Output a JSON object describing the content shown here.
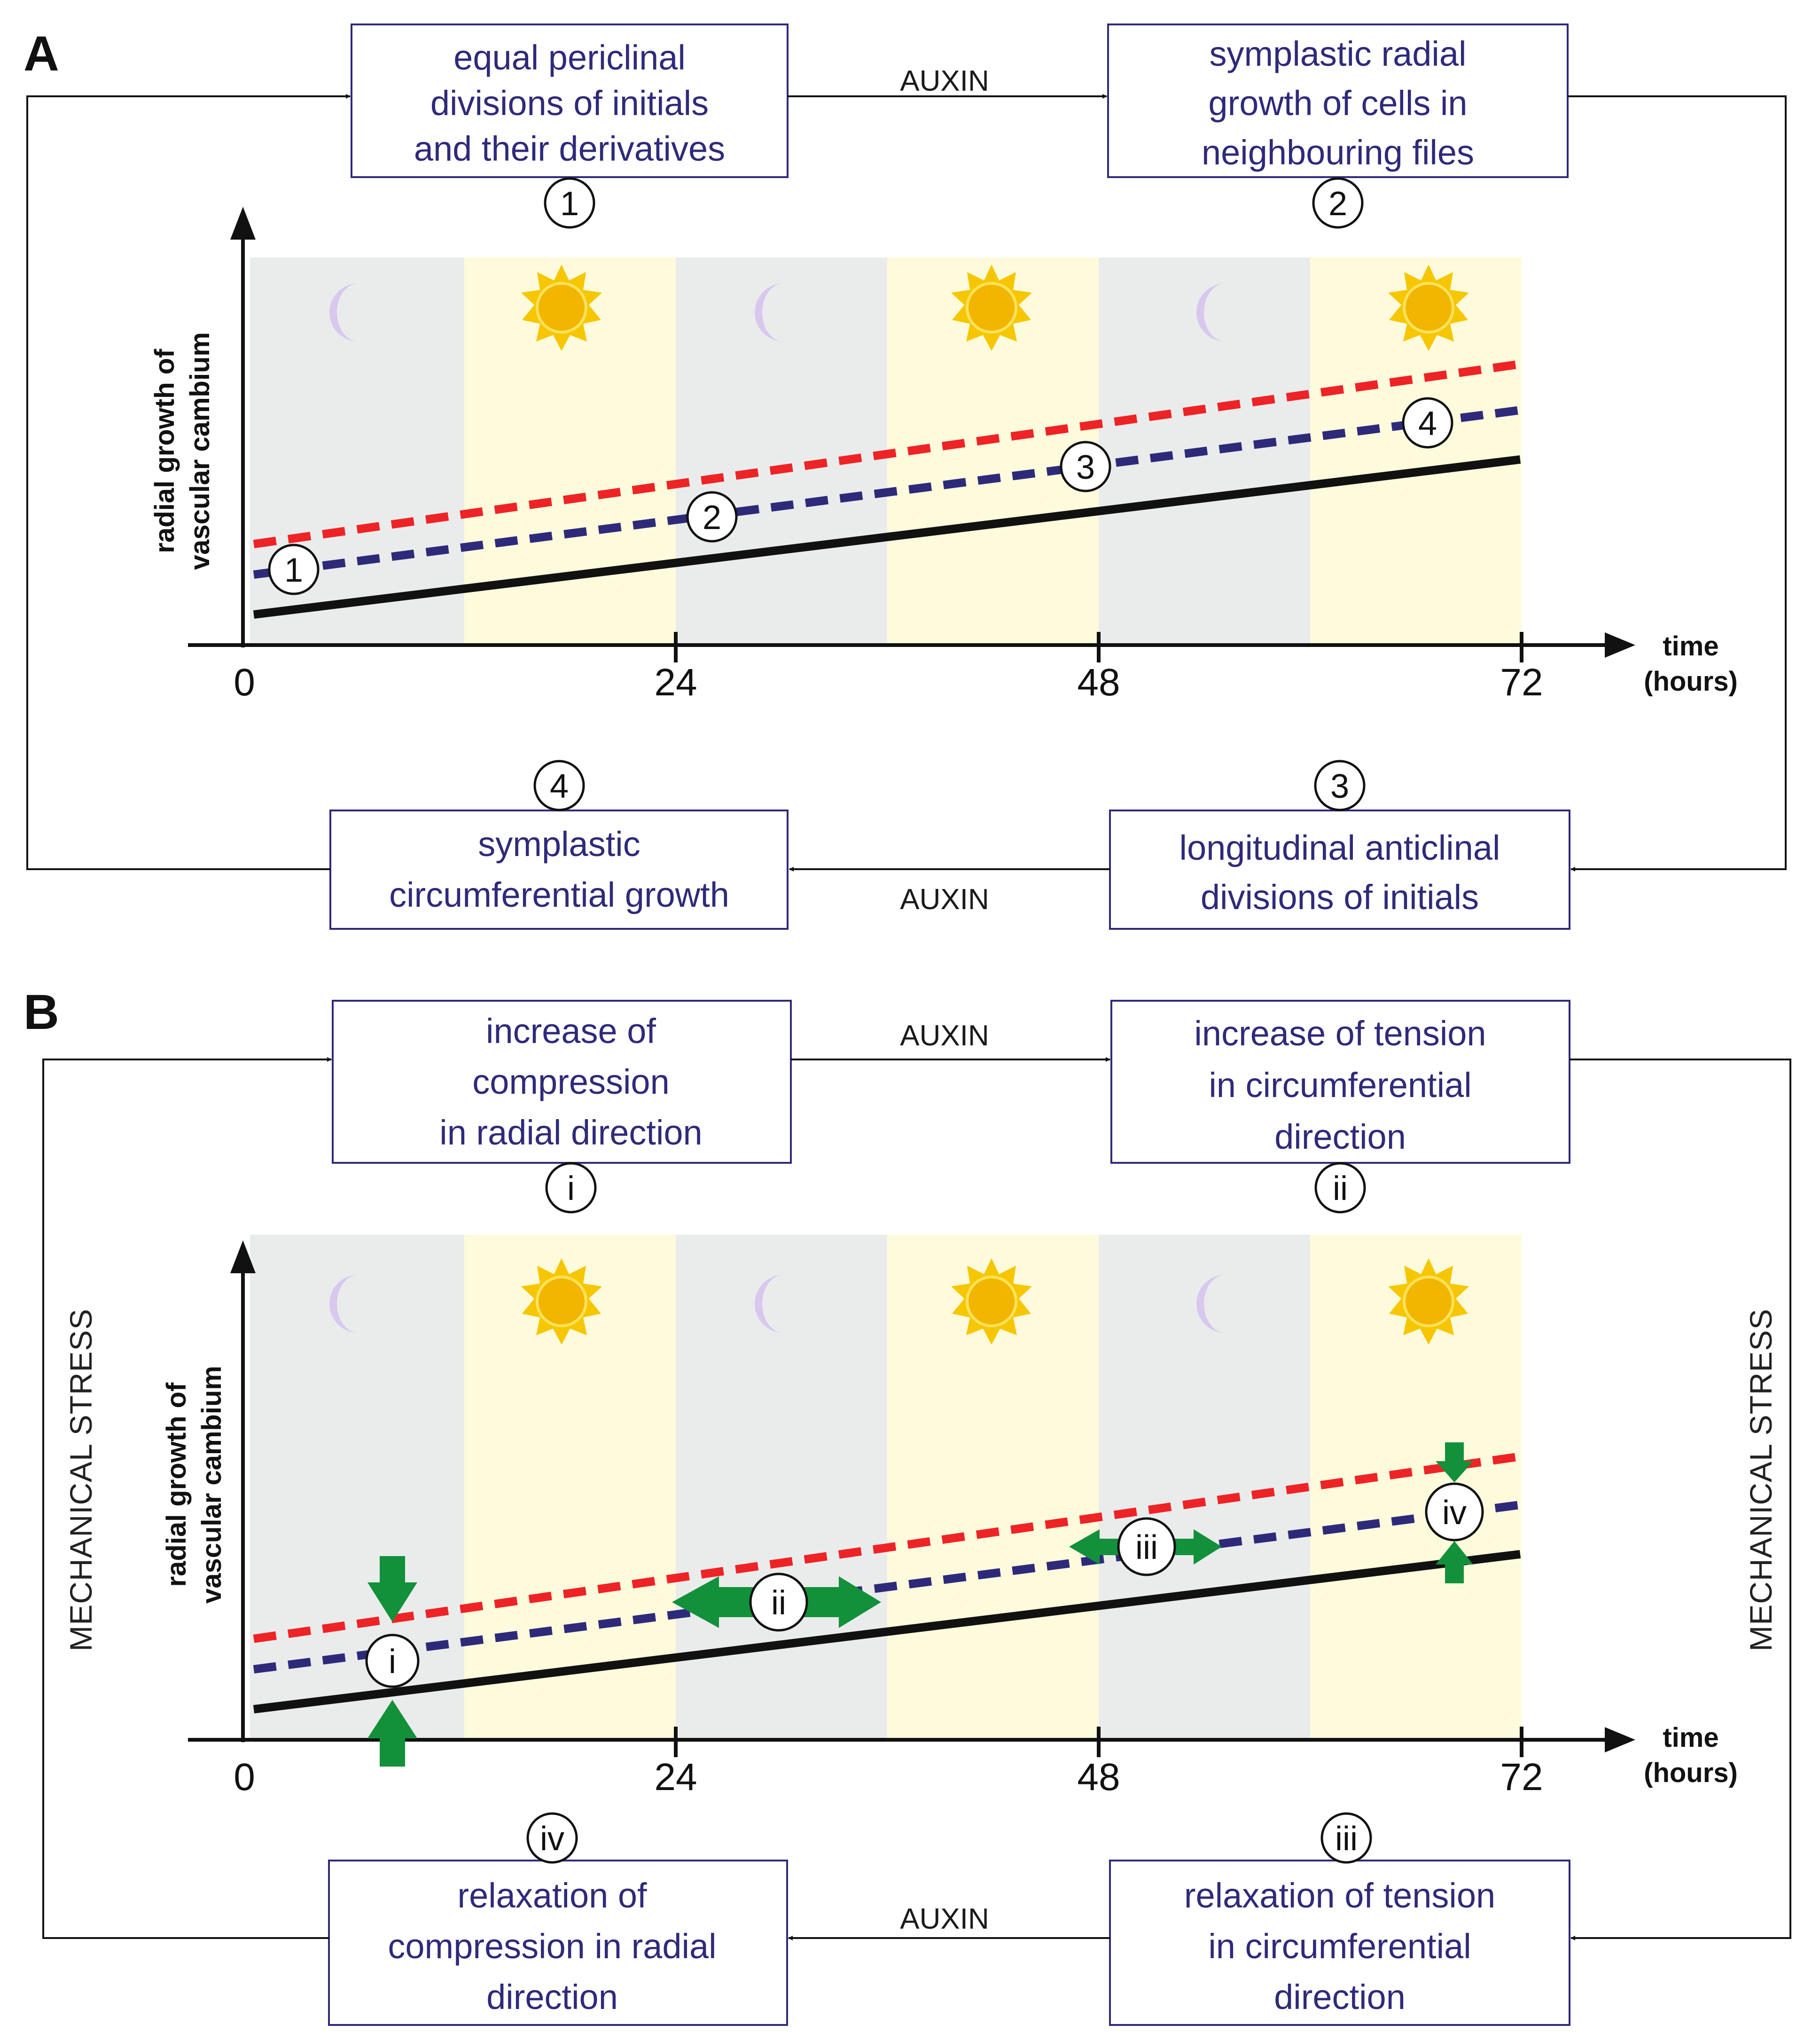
{
  "panel_a": {
    "letter": "A",
    "box1": {
      "lines": [
        "equal periclinal",
        "divisions of initials",
        "and their derivatives"
      ],
      "num": "1"
    },
    "box2": {
      "lines": [
        "symplastic radial",
        "growth of cells in",
        "neighbouring files"
      ],
      "num": "2"
    },
    "box3": {
      "lines": [
        "longitudinal anticlinal",
        "divisions of initials"
      ],
      "num": "3"
    },
    "box4": {
      "lines": [
        "symplastic",
        "circumferential growth"
      ],
      "num": "4"
    },
    "auxin_top": "AUXIN",
    "auxin_bottom": "AUXIN",
    "chart": {
      "ylabel": [
        "radial growth of",
        "vascular cambium"
      ],
      "xlabel": [
        "time",
        "(hours)"
      ],
      "ticks": [
        "0",
        "24",
        "48",
        "72"
      ],
      "markers": [
        "1",
        "2",
        "3",
        "4"
      ]
    }
  },
  "panel_b": {
    "letter": "B",
    "box1": {
      "lines": [
        "increase of",
        "compression",
        "in radial direction"
      ],
      "num": "i"
    },
    "box2": {
      "lines": [
        "increase of tension",
        "in circumferential",
        "direction"
      ],
      "num": "ii"
    },
    "box3": {
      "lines": [
        "relaxation of tension",
        "in circumferential",
        "direction"
      ],
      "num": "iii"
    },
    "box4": {
      "lines": [
        "relaxation of",
        "compression in radial",
        "direction"
      ],
      "num": "iv"
    },
    "auxin_top": "AUXIN",
    "auxin_bottom": "AUXIN",
    "stress_left": "MECHANICAL STRESS",
    "stress_right": "MECHANICAL STRESS",
    "chart": {
      "ylabel": [
        "radial growth of",
        "vascular cambium"
      ],
      "xlabel": [
        "time",
        "(hours)"
      ],
      "ticks": [
        "0",
        "24",
        "48",
        "72"
      ],
      "markers": [
        "i",
        "ii",
        "iii",
        "iv"
      ]
    }
  },
  "colors": {
    "night": "#eaecec",
    "day": "#fefbdc",
    "red_line": "#ee2326",
    "blue_line": "#2e2a7a",
    "black_line": "#111111",
    "arrow_green": "#12903a",
    "box_border": "#2e2a7a",
    "sun": "#f6c600",
    "moon": "#d8c8ee"
  }
}
